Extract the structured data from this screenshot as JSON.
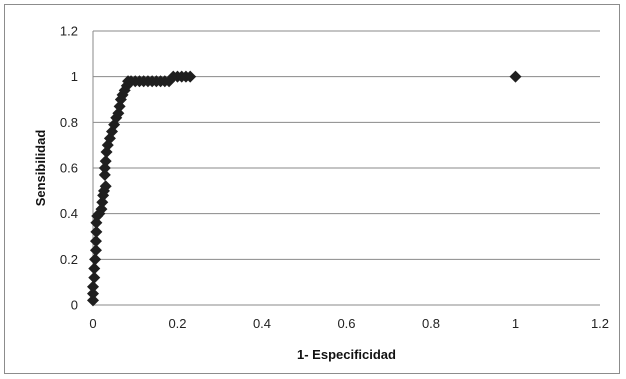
{
  "chart_data": {
    "type": "scatter",
    "xlabel": "1- Especificidad",
    "ylabel": "Sensibilidad",
    "xlim": [
      0,
      1.2
    ],
    "ylim": [
      0,
      1.2
    ],
    "x_ticks": [
      "0",
      "0.2",
      "0.4",
      "0.6",
      "0.8",
      "1",
      "1.2"
    ],
    "y_ticks": [
      "0",
      "0.2",
      "0.4",
      "0.6",
      "0.8",
      "1",
      "1.2"
    ],
    "grid": "horizontal",
    "legend": "none",
    "marker": "diamond",
    "marker_color": "#1f1f1f",
    "series": [
      {
        "points": [
          [
            0,
            0.02
          ],
          [
            0,
            0.05
          ],
          [
            0,
            0.08
          ],
          [
            0.003,
            0.12
          ],
          [
            0.003,
            0.16
          ],
          [
            0.005,
            0.2
          ],
          [
            0.007,
            0.24
          ],
          [
            0.007,
            0.28
          ],
          [
            0.008,
            0.32
          ],
          [
            0.008,
            0.36
          ],
          [
            0.01,
            0.39
          ],
          [
            0.015,
            0.4
          ],
          [
            0.02,
            0.42
          ],
          [
            0.022,
            0.45
          ],
          [
            0.024,
            0.48
          ],
          [
            0.026,
            0.5
          ],
          [
            0.03,
            0.52
          ],
          [
            0.028,
            0.57
          ],
          [
            0.028,
            0.6
          ],
          [
            0.03,
            0.63
          ],
          [
            0.032,
            0.67
          ],
          [
            0.035,
            0.7
          ],
          [
            0.04,
            0.73
          ],
          [
            0.045,
            0.76
          ],
          [
            0.05,
            0.79
          ],
          [
            0.055,
            0.82
          ],
          [
            0.06,
            0.84
          ],
          [
            0.063,
            0.87
          ],
          [
            0.066,
            0.9
          ],
          [
            0.07,
            0.92
          ],
          [
            0.075,
            0.94
          ],
          [
            0.08,
            0.96
          ],
          [
            0.083,
            0.98
          ],
          [
            0.09,
            0.98
          ],
          [
            0.1,
            0.98
          ],
          [
            0.11,
            0.98
          ],
          [
            0.12,
            0.98
          ],
          [
            0.13,
            0.98
          ],
          [
            0.14,
            0.98
          ],
          [
            0.15,
            0.98
          ],
          [
            0.16,
            0.98
          ],
          [
            0.17,
            0.98
          ],
          [
            0.18,
            0.98
          ],
          [
            0.19,
            1.0
          ],
          [
            0.2,
            1.0
          ],
          [
            0.21,
            1.0
          ],
          [
            0.22,
            1.0
          ],
          [
            0.23,
            1.0
          ],
          [
            1.0,
            1.0
          ]
        ]
      }
    ]
  }
}
